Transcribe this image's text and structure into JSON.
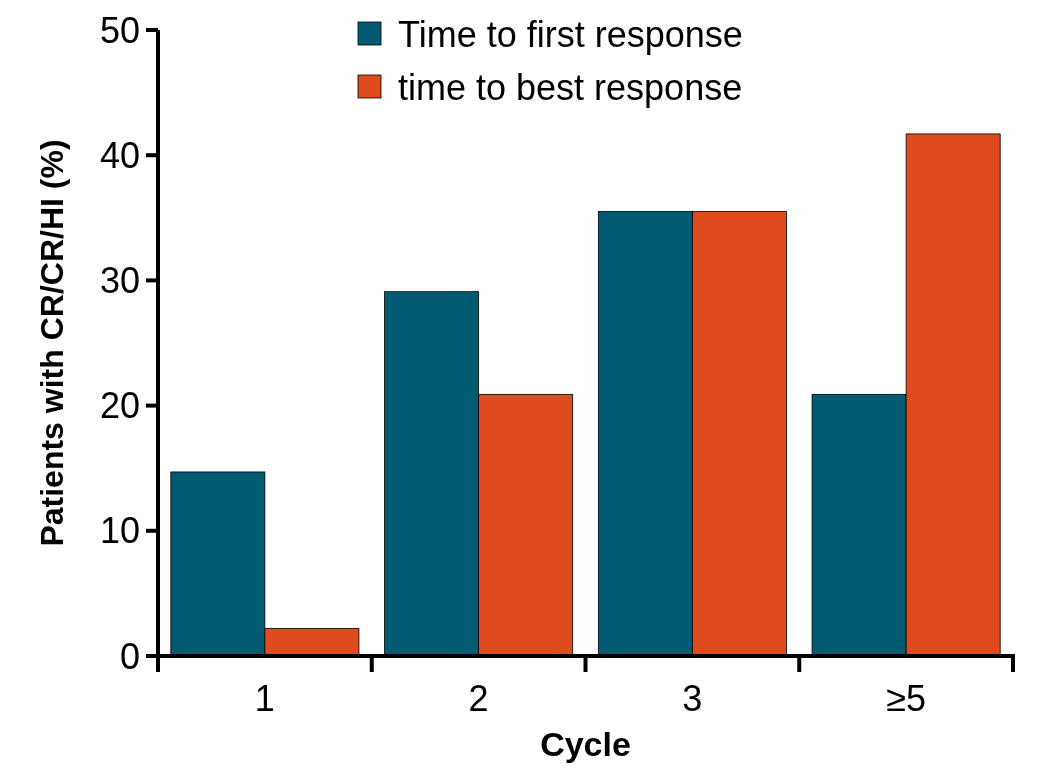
{
  "chart_data": {
    "type": "bar",
    "xlabel": "Cycle",
    "ylabel": "Patients with CR/CR/HI (%)",
    "categories": [
      "1",
      "2",
      "3",
      "≥5"
    ],
    "series": [
      {
        "name": "Time to first response",
        "color": "#025a73",
        "values": [
          14.7,
          29.1,
          35.5,
          20.9
        ]
      },
      {
        "name": "time to best response",
        "color": "#e04a1f",
        "values": [
          2.2,
          20.9,
          35.5,
          41.7
        ]
      }
    ],
    "ylim": [
      0,
      50
    ],
    "yticks": [
      0,
      10,
      20,
      30,
      40,
      50
    ],
    "legend": "top",
    "grid": false
  }
}
